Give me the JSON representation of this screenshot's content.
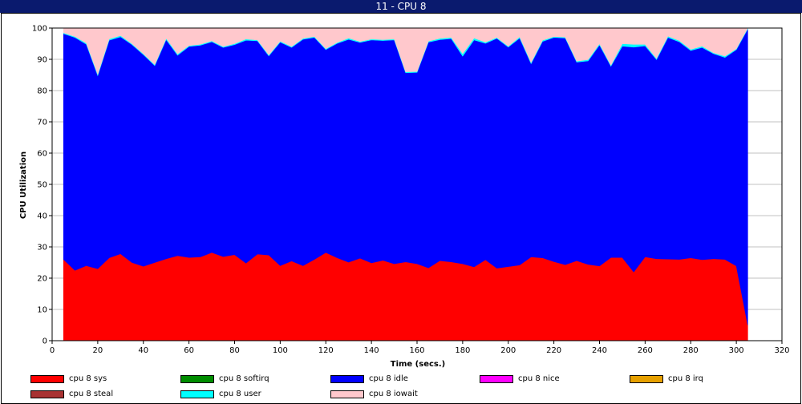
{
  "window": {
    "title": "11  -  CPU 8"
  },
  "chart_data": {
    "type": "area",
    "stacked": true,
    "xlabel": "Time (secs.)",
    "ylabel": "CPU Utilization",
    "xlim": [
      0,
      320
    ],
    "ylim": [
      0,
      100
    ],
    "xticks": [
      0,
      20,
      40,
      60,
      80,
      100,
      120,
      140,
      160,
      180,
      200,
      220,
      240,
      260,
      280,
      300,
      320
    ],
    "yticks": [
      0,
      10,
      20,
      30,
      40,
      50,
      60,
      70,
      80,
      90,
      100
    ],
    "grid": true,
    "legend_position": "bottom",
    "x": [
      5,
      10,
      15,
      20,
      25,
      30,
      35,
      40,
      45,
      50,
      55,
      60,
      65,
      70,
      75,
      80,
      85,
      90,
      95,
      100,
      105,
      110,
      115,
      120,
      125,
      130,
      135,
      140,
      145,
      150,
      155,
      160,
      165,
      170,
      175,
      180,
      185,
      190,
      195,
      200,
      205,
      210,
      215,
      220,
      225,
      230,
      235,
      240,
      245,
      250,
      255,
      260,
      265,
      270,
      275,
      280,
      285,
      290,
      295,
      300,
      305
    ],
    "series": [
      {
        "name": "cpu 8 sys",
        "color": "#ff0000",
        "values": [
          26,
          22.5,
          24,
          23,
          26.5,
          27.8,
          25,
          23.8,
          25,
          26.2,
          27.2,
          26.6,
          26.8,
          28.2,
          26.9,
          27.5,
          24.8,
          27.7,
          27.4,
          24,
          25.5,
          24,
          26,
          28.2,
          26.5,
          25.1,
          26.4,
          24.9,
          25.7,
          24.6,
          25.2,
          24.6,
          23.3,
          25.6,
          25.2,
          24.6,
          23.6,
          25.9,
          23.2,
          23.7,
          24.2,
          26.8,
          26.5,
          25.3,
          24.3,
          25.6,
          24.4,
          23.9,
          26.6,
          26.6,
          22,
          26.8,
          26.2,
          26.1,
          26,
          26.5,
          25.9,
          26.2,
          26,
          23.9,
          5
        ]
      },
      {
        "name": "cpu 8 softirq",
        "color": "#008c00",
        "values": [
          0,
          0,
          0,
          0,
          0,
          0,
          0,
          0,
          0,
          0,
          0,
          0,
          0,
          0,
          0,
          0,
          0,
          0,
          0,
          0,
          0,
          0,
          0,
          0,
          0,
          0,
          0,
          0,
          0,
          0,
          0,
          0,
          0,
          0,
          0,
          0,
          0,
          0,
          0,
          0,
          0,
          0,
          0,
          0,
          0,
          0,
          0,
          0,
          0,
          0,
          0,
          0,
          0,
          0,
          0,
          0,
          0,
          0,
          0,
          0,
          0
        ]
      },
      {
        "name": "cpu 8 idle",
        "color": "#0000ff",
        "values": [
          72.2,
          74.5,
          70.8,
          61.8,
          69.6,
          69.4,
          69.7,
          67.7,
          63,
          70.1,
          64.1,
          67.5,
          67.7,
          67.4,
          66.9,
          67.2,
          71.3,
          68.2,
          63.7,
          71.5,
          68.3,
          72.4,
          71,
          64.9,
          68.6,
          71.3,
          69,
          71.3,
          70.3,
          71.6,
          60.5,
          61.2,
          72.2,
          70.7,
          71.4,
          66.4,
          72.6,
          69.2,
          73.5,
          70.2,
          72.6,
          61.8,
          69.2,
          71.7,
          72.5,
          63.5,
          65.1,
          70.7,
          61.2,
          67.6,
          71.9,
          67.5,
          63.7,
          70.9,
          69.6,
          66.3,
          67.9,
          65.6,
          64.6,
          69.2,
          94.7
        ]
      },
      {
        "name": "cpu 8 nice",
        "color": "#ff00ff",
        "values": [
          0,
          0,
          0,
          0,
          0,
          0,
          0,
          0,
          0,
          0,
          0,
          0,
          0,
          0,
          0,
          0,
          0,
          0,
          0,
          0,
          0,
          0,
          0,
          0,
          0,
          0,
          0,
          0,
          0,
          0,
          0,
          0,
          0,
          0,
          0,
          0,
          0,
          0,
          0,
          0,
          0,
          0,
          0,
          0,
          0,
          0,
          0,
          0,
          0,
          0,
          0,
          0,
          0,
          0,
          0,
          0,
          0,
          0,
          0,
          0,
          0
        ]
      },
      {
        "name": "cpu 8 irq",
        "color": "#e6a000",
        "values": [
          0,
          0,
          0,
          0,
          0,
          0,
          0,
          0,
          0,
          0,
          0,
          0,
          0,
          0,
          0,
          0,
          0,
          0,
          0,
          0,
          0,
          0,
          0,
          0,
          0,
          0,
          0,
          0,
          0,
          0,
          0,
          0,
          0,
          0,
          0,
          0,
          0,
          0,
          0,
          0,
          0,
          0,
          0,
          0,
          0,
          0,
          0,
          0,
          0,
          0,
          0,
          0,
          0,
          0,
          0,
          0,
          0,
          0,
          0,
          0,
          0
        ]
      },
      {
        "name": "cpu 8 steal",
        "color": "#a83232",
        "values": [
          0,
          0,
          0,
          0,
          0,
          0,
          0,
          0,
          0,
          0,
          0,
          0,
          0,
          0,
          0,
          0,
          0,
          0,
          0,
          0,
          0,
          0,
          0,
          0,
          0,
          0,
          0,
          0,
          0,
          0,
          0,
          0,
          0,
          0,
          0,
          0,
          0,
          0,
          0,
          0,
          0,
          0,
          0,
          0,
          0,
          0,
          0,
          0,
          0,
          0,
          0,
          0,
          0,
          0,
          0,
          0,
          0,
          0,
          0,
          0,
          0
        ]
      },
      {
        "name": "cpu 8 user",
        "color": "#00ffff",
        "values": [
          0.3,
          0.3,
          0.4,
          0.4,
          0.4,
          0.4,
          0.3,
          0.3,
          0.3,
          0.4,
          0.4,
          0.3,
          0.3,
          0.3,
          0.3,
          0.3,
          0.4,
          0.3,
          0.3,
          0.3,
          0.3,
          0.3,
          0.3,
          0.3,
          0.3,
          0.4,
          0.3,
          0.3,
          0.3,
          0.3,
          0.3,
          0.3,
          0.3,
          0.4,
          0.4,
          0.8,
          0.6,
          0.4,
          0.3,
          0.3,
          0.4,
          0.4,
          0.4,
          0.3,
          0.3,
          0.3,
          0.4,
          0.4,
          0.3,
          0.8,
          0.9,
          0.5,
          0.4,
          0.4,
          0.4,
          0.4,
          0.4,
          0.3,
          0.4,
          0.3,
          0.3
        ]
      },
      {
        "name": "cpu 8 iowait",
        "color": "#ffc8cc",
        "values": [
          1.5,
          2.7,
          4.8,
          14.8,
          3.5,
          2.4,
          5,
          8.2,
          11.7,
          3.3,
          8.3,
          5.6,
          5.2,
          4.1,
          5.9,
          5,
          3.5,
          3.8,
          8.6,
          4.2,
          5.9,
          3.3,
          2.7,
          6.6,
          4.6,
          3.2,
          4.3,
          3.5,
          3.7,
          3.5,
          14,
          13.9,
          4.2,
          3.3,
          3,
          8.2,
          3.2,
          4.5,
          3,
          5.8,
          2.8,
          11,
          3.9,
          2.7,
          2.9,
          10.6,
          10.1,
          5,
          11.9,
          5,
          5.2,
          5.2,
          9.7,
          2.6,
          4,
          6.8,
          5.8,
          7.9,
          9,
          6.6,
          0
        ]
      }
    ]
  }
}
